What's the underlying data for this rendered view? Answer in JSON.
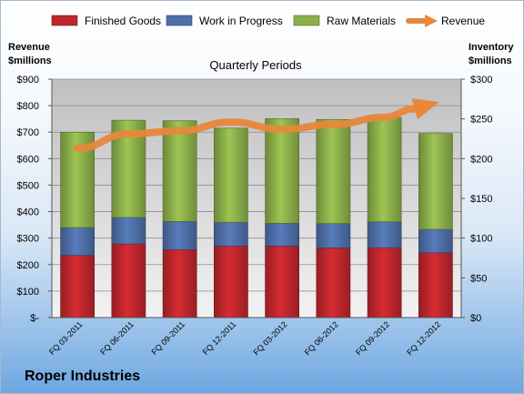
{
  "company": "Roper Industries",
  "chart_data": {
    "type": "bar",
    "stacked": true,
    "title": "Quarterly Periods",
    "categories": [
      "FQ 03-2011",
      "FQ 06-2011",
      "FQ 09-2011",
      "FQ 12-2011",
      "FQ 03-2012",
      "FQ 06-2012",
      "FQ 09-2012",
      "FQ 12-2012"
    ],
    "series": [
      {
        "name": "Finished Goods",
        "axis": "left",
        "color": "#c0262d",
        "values": [
          235,
          278,
          256,
          270,
          270,
          263,
          264,
          245
        ]
      },
      {
        "name": "Work in Progress",
        "axis": "left",
        "color": "#4f6fa8",
        "values": [
          105,
          100,
          107,
          90,
          86,
          92,
          98,
          88
        ]
      },
      {
        "name": "Raw Materials",
        "axis": "left",
        "color": "#8cb04a",
        "values": [
          360,
          367,
          380,
          355,
          395,
          393,
          393,
          362
        ]
      }
    ],
    "line_series": {
      "name": "Revenue",
      "axis": "right",
      "color": "#e8873a",
      "style": "arrow",
      "values": [
        213,
        231,
        235,
        246,
        237,
        243,
        252,
        270
      ]
    },
    "left_axis": {
      "label_line1": "Revenue",
      "label_line2": "$millions",
      "min": 0,
      "max": 900,
      "step": 100,
      "tick_labels": [
        "$-",
        "$100",
        "$200",
        "$300",
        "$400",
        "$500",
        "$600",
        "$700",
        "$800",
        "$900"
      ]
    },
    "right_axis": {
      "label_line1": "Inventory",
      "label_line2": "$millions",
      "min": 0,
      "max": 300,
      "step": 50,
      "tick_labels": [
        "$0",
        "$50",
        "$100",
        "$150",
        "$200",
        "$250",
        "$300"
      ]
    },
    "legend": {
      "placement": "top"
    },
    "grid": true
  }
}
